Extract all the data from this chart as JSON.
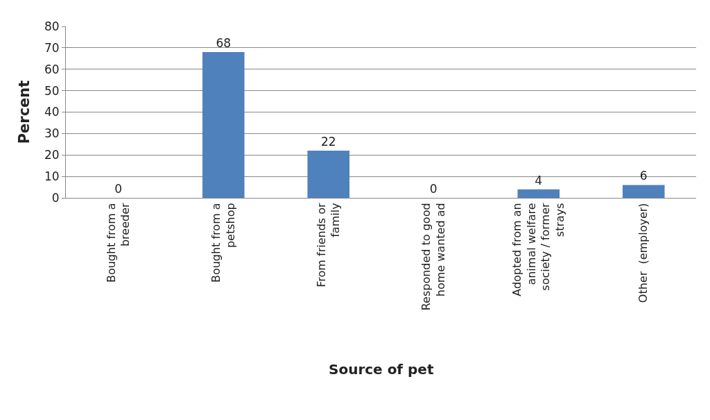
{
  "chart_data": {
    "type": "bar",
    "xlabel": "Source of pet",
    "ylabel": "Percent",
    "categories": [
      "Bought from a\nbreeder",
      "Bought from a\npetshop",
      "From friends or\nfamily",
      "Responded to good\nhome wanted ad",
      "Adopted from an\nanimal welfare\nsociety / former\nstrays",
      "Other  (employer)"
    ],
    "values": [
      0,
      68,
      22,
      0,
      4,
      6
    ],
    "color": "#4f81bd",
    "ylim": [
      0,
      80
    ],
    "yticks": [
      0,
      10,
      20,
      30,
      40,
      50,
      60,
      70,
      80
    ],
    "grid": "y",
    "data_labels": true
  }
}
